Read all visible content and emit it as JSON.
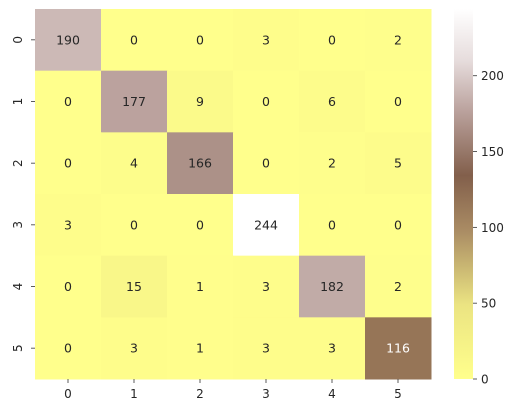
{
  "chart_data": {
    "type": "heatmap",
    "title": "",
    "xlabel": "",
    "ylabel": "",
    "x_categories": [
      "0",
      "1",
      "2",
      "3",
      "4",
      "5"
    ],
    "y_categories": [
      "0",
      "1",
      "2",
      "3",
      "4",
      "5"
    ],
    "values": [
      [
        190,
        0,
        0,
        3,
        0,
        2
      ],
      [
        0,
        177,
        9,
        0,
        6,
        0
      ],
      [
        0,
        4,
        166,
        0,
        2,
        5
      ],
      [
        3,
        0,
        0,
        244,
        0,
        0
      ],
      [
        0,
        15,
        1,
        3,
        182,
        2
      ],
      [
        0,
        3,
        1,
        3,
        3,
        116
      ]
    ],
    "color_range": [
      0,
      244
    ],
    "colormap": "pink-like (yellow low, brown mid, white high)",
    "colorbar": {
      "ticks": [
        0,
        50,
        100,
        150,
        200
      ]
    },
    "grid": false
  }
}
